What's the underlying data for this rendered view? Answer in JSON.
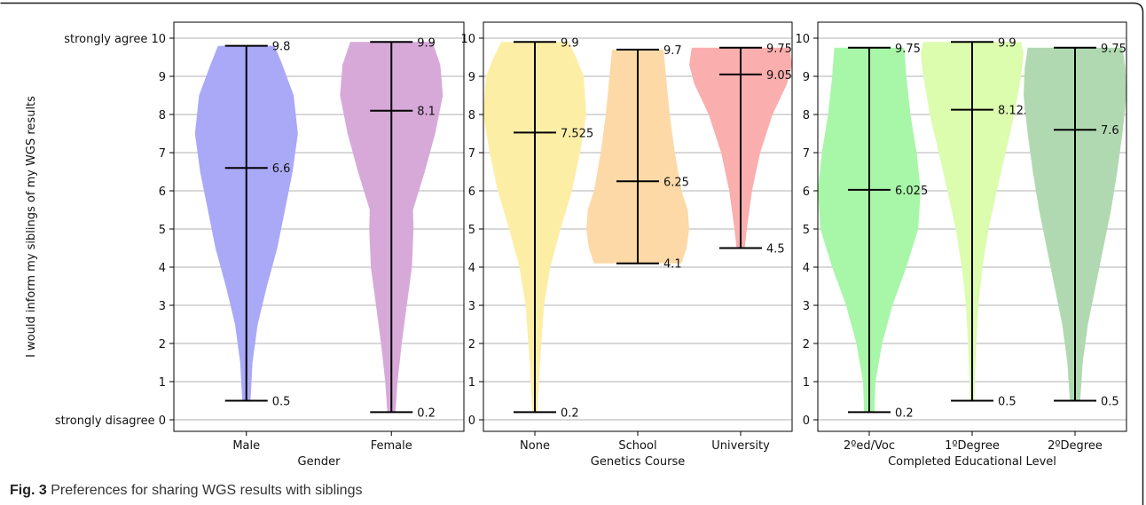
{
  "caption": {
    "label": "Fig. 3",
    "text": "Preferences for sharing WGS results with siblings"
  },
  "chart_data": [
    {
      "type": "violin",
      "xlabel": "Gender",
      "ylabel": "I would inform my siblings of my WGS results",
      "ylim": [
        0,
        10
      ],
      "yticks": [
        0,
        1,
        2,
        3,
        4,
        5,
        6,
        7,
        8,
        9,
        10
      ],
      "yticklabels": [
        "strongly disagree 0",
        "1",
        "2",
        "3",
        "4",
        "5",
        "6",
        "7",
        "8",
        "9",
        "strongly agree 10"
      ],
      "grid": "horizontal",
      "categories": [
        "Male",
        "Female"
      ],
      "series": [
        {
          "min": 0.5,
          "median": 6.6,
          "max": 9.8,
          "color": "#a9a9f8",
          "density": [
            [
              0.5,
              0.08
            ],
            [
              1.5,
              0.12
            ],
            [
              2.5,
              0.22
            ],
            [
              3.5,
              0.4
            ],
            [
              4.5,
              0.6
            ],
            [
              5.5,
              0.75
            ],
            [
              6.5,
              0.9
            ],
            [
              7.5,
              1.0
            ],
            [
              8.5,
              0.92
            ],
            [
              9.3,
              0.7
            ],
            [
              9.8,
              0.55
            ]
          ]
        },
        {
          "min": 0.2,
          "median": 8.1,
          "max": 9.9,
          "color": "#d7a9d8",
          "density": [
            [
              0.2,
              0.08
            ],
            [
              1,
              0.12
            ],
            [
              2,
              0.2
            ],
            [
              3,
              0.3
            ],
            [
              4,
              0.4
            ],
            [
              5,
              0.43
            ],
            [
              5.5,
              0.42
            ],
            [
              6.5,
              0.65
            ],
            [
              7.5,
              0.85
            ],
            [
              8.5,
              1.0
            ],
            [
              9.3,
              0.95
            ],
            [
              9.9,
              0.8
            ]
          ]
        }
      ],
      "labels": [
        {
          "category": "Male",
          "values": [
            "9.8",
            "6.6",
            "0.5"
          ]
        },
        {
          "category": "Female",
          "values": [
            "9.9",
            "8.1",
            "0.2"
          ]
        }
      ]
    },
    {
      "type": "violin",
      "xlabel": "Genetics Course",
      "ylim": [
        0,
        10
      ],
      "yticks": [
        0,
        1,
        2,
        3,
        4,
        5,
        6,
        7,
        8,
        9,
        10
      ],
      "yticklabels": [
        "0",
        "1",
        "2",
        "3",
        "4",
        "5",
        "6",
        "7",
        "8",
        "9",
        "10"
      ],
      "grid": "horizontal",
      "categories": [
        "None",
        "School",
        "University"
      ],
      "series": [
        {
          "min": 0.2,
          "median": 7.525,
          "max": 9.9,
          "color": "#fdeea6",
          "density": [
            [
              0.2,
              0.05
            ],
            [
              1.5,
              0.1
            ],
            [
              3,
              0.18
            ],
            [
              4,
              0.3
            ],
            [
              5,
              0.5
            ],
            [
              6,
              0.72
            ],
            [
              7,
              0.88
            ],
            [
              8,
              1.0
            ],
            [
              9,
              0.95
            ],
            [
              9.5,
              0.8
            ],
            [
              9.9,
              0.65
            ]
          ]
        },
        {
          "min": 4.1,
          "median": 6.25,
          "max": 9.7,
          "color": "#fcd9a6",
          "density": [
            [
              4.1,
              0.85
            ],
            [
              4.5,
              0.95
            ],
            [
              5,
              1.0
            ],
            [
              5.5,
              0.97
            ],
            [
              6,
              0.85
            ],
            [
              7,
              0.72
            ],
            [
              8,
              0.62
            ],
            [
              9,
              0.55
            ],
            [
              9.7,
              0.5
            ]
          ]
        },
        {
          "min": 4.5,
          "median": 9.05,
          "max": 9.75,
          "color": "#fbaeae",
          "density": [
            [
              4.5,
              0.08
            ],
            [
              5,
              0.12
            ],
            [
              6,
              0.22
            ],
            [
              7,
              0.38
            ],
            [
              8,
              0.62
            ],
            [
              8.8,
              0.9
            ],
            [
              9.3,
              1.0
            ],
            [
              9.75,
              0.95
            ]
          ]
        }
      ],
      "labels": [
        {
          "category": "None",
          "values": [
            "9.9",
            "7.525",
            "0.2"
          ]
        },
        {
          "category": "School",
          "values": [
            "9.7",
            "6.25",
            "4.1"
          ]
        },
        {
          "category": "University",
          "values": [
            "9.75",
            "9.05",
            "4.5"
          ]
        }
      ]
    },
    {
      "type": "violin",
      "xlabel": "Completed Educational Level",
      "ylim": [
        0,
        10
      ],
      "yticks": [
        0,
        1,
        2,
        3,
        4,
        5,
        6,
        7,
        8,
        9,
        10
      ],
      "yticklabels": [
        "0",
        "1",
        "2",
        "3",
        "4",
        "5",
        "6",
        "7",
        "8",
        "9",
        "10"
      ],
      "grid": "horizontal",
      "categories": [
        "2ºed/Voc",
        "1ºDegree",
        "2ºDegree"
      ],
      "series": [
        {
          "min": 0.2,
          "median": 6.025,
          "max": 9.75,
          "color": "#a8f6a8",
          "density": [
            [
              0.2,
              0.1
            ],
            [
              1,
              0.12
            ],
            [
              2,
              0.25
            ],
            [
              3,
              0.45
            ],
            [
              4,
              0.72
            ],
            [
              5,
              0.95
            ],
            [
              6,
              1.0
            ],
            [
              7,
              0.92
            ],
            [
              8,
              0.8
            ],
            [
              9,
              0.72
            ],
            [
              9.75,
              0.68
            ]
          ]
        },
        {
          "min": 0.5,
          "median": 8.125,
          "max": 9.9,
          "color": "#dcfcae",
          "density": [
            [
              0.5,
              0.04
            ],
            [
              2,
              0.08
            ],
            [
              3,
              0.12
            ],
            [
              4,
              0.2
            ],
            [
              5,
              0.32
            ],
            [
              6,
              0.48
            ],
            [
              7,
              0.65
            ],
            [
              8,
              0.82
            ],
            [
              9,
              0.95
            ],
            [
              9.6,
              1.0
            ],
            [
              9.9,
              0.95
            ]
          ]
        },
        {
          "min": 0.5,
          "median": 7.6,
          "max": 9.75,
          "color": "#b1d9b1",
          "density": [
            [
              0.5,
              0.1
            ],
            [
              1.5,
              0.15
            ],
            [
              2.5,
              0.25
            ],
            [
              3.5,
              0.4
            ],
            [
              4.5,
              0.55
            ],
            [
              5.5,
              0.7
            ],
            [
              6.5,
              0.82
            ],
            [
              7.5,
              0.92
            ],
            [
              8.5,
              1.0
            ],
            [
              9.2,
              0.98
            ],
            [
              9.75,
              0.92
            ]
          ]
        }
      ],
      "labels": [
        {
          "category": "2ºed/Voc",
          "values": [
            "9.75",
            "6.025",
            "0.2"
          ]
        },
        {
          "category": "1ºDegree",
          "values": [
            "9.9",
            "8.125",
            "0.5"
          ]
        },
        {
          "category": "2ºDegree",
          "values": [
            "9.75",
            "7.6",
            "0.5"
          ]
        }
      ]
    }
  ]
}
